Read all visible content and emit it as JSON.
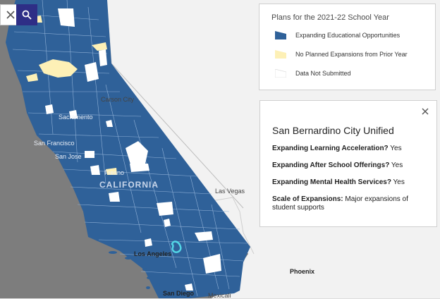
{
  "map": {
    "colors": {
      "expanding": "#2f6199",
      "no_planned": "#fdf0b6",
      "not_submitted": "#ffffff",
      "ocean": "#7d7d7d",
      "land": "#f2f2f2",
      "selected": "#53d6e6"
    },
    "labels": {
      "carson_city": "Carson City",
      "sacramento": "Sacramento",
      "san_francisco": "San Francisco",
      "san_jose": "San Jose",
      "fresno": "Fresno",
      "california": "CALIFORNIA",
      "las_vegas": "Las Vegas",
      "los_angeles": "Los Angeles",
      "phoenix": "Phoenix",
      "san_diego": "San Diego",
      "mexicali": "Mexicali"
    }
  },
  "controls": {
    "close_icon": "close-icon",
    "search_icon": "search-icon"
  },
  "legend": {
    "title": "Plans for the 2021-22 School Year",
    "items": [
      {
        "label": "Expanding Educational Opportunities",
        "color": "#2f6199"
      },
      {
        "label": "No Planned Expansions from Prior Year",
        "color": "#fdf0b6"
      },
      {
        "label": "Data Not Submitted",
        "color": "#ffffff"
      }
    ]
  },
  "popup": {
    "title": "San Bernardino City Unified",
    "rows": [
      {
        "label": "Expanding Learning Acceleration?",
        "value": "Yes"
      },
      {
        "label": "Expanding After School Offerings?",
        "value": "Yes"
      },
      {
        "label": "Expanding Mental Health Services?",
        "value": "Yes"
      },
      {
        "label": "Scale of Expansions:",
        "value": "Major expansions of student supports"
      }
    ]
  }
}
